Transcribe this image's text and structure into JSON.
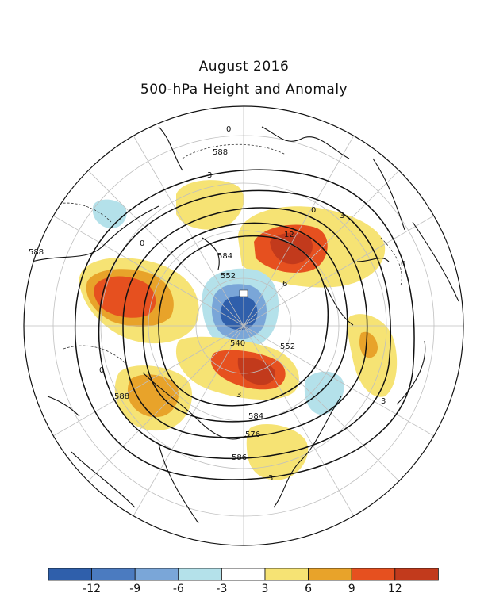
{
  "title": "August 2016",
  "subtitle": "500-hPa Height and Anomaly",
  "colors": {
    "land": "#111111",
    "grid": "#bfbfbf",
    "height_contour": "#111111",
    "anomaly_contour": "#333333"
  },
  "height_labels": [
    "588",
    "584",
    "552",
    "540",
    "552",
    "584",
    "576",
    "586",
    "588",
    "588"
  ],
  "anomaly_labels": [
    "0",
    "3",
    "0",
    "3",
    "0",
    "12",
    "6",
    "0",
    "3",
    "3",
    "0",
    "3"
  ],
  "colorbar": {
    "colors": [
      "#2f5fab",
      "#4b7bc0",
      "#7aa6d8",
      "#b4e1ea",
      "#ffffff",
      "#f6e374",
      "#e8a32a",
      "#e6501f",
      "#c23a1c"
    ],
    "tick_labels": [
      "-12",
      "-9",
      "-6",
      "-3",
      "3",
      "6",
      "9",
      "12"
    ]
  },
  "anomaly_regions": [
    {
      "name": "north-atlantic-positive",
      "level": 12,
      "color": "#c23a1c"
    },
    {
      "name": "arctic-negative",
      "level": -12,
      "color": "#2f5fab"
    },
    {
      "name": "siberia-positive",
      "level": 12,
      "color": "#c23a1c"
    },
    {
      "name": "east-asia-positive",
      "level": 9,
      "color": "#e8a32a"
    },
    {
      "name": "north-pacific-negative",
      "level": -6,
      "color": "#7aa6d8"
    },
    {
      "name": "western-canada-positive",
      "level": 6,
      "color": "#f6e374"
    },
    {
      "name": "north-america-negative",
      "level": -3,
      "color": "#b4e1ea"
    },
    {
      "name": "pacific-positive",
      "level": 6,
      "color": "#f6e374"
    },
    {
      "name": "europe-positive",
      "level": 3,
      "color": "#f6e374"
    }
  ]
}
